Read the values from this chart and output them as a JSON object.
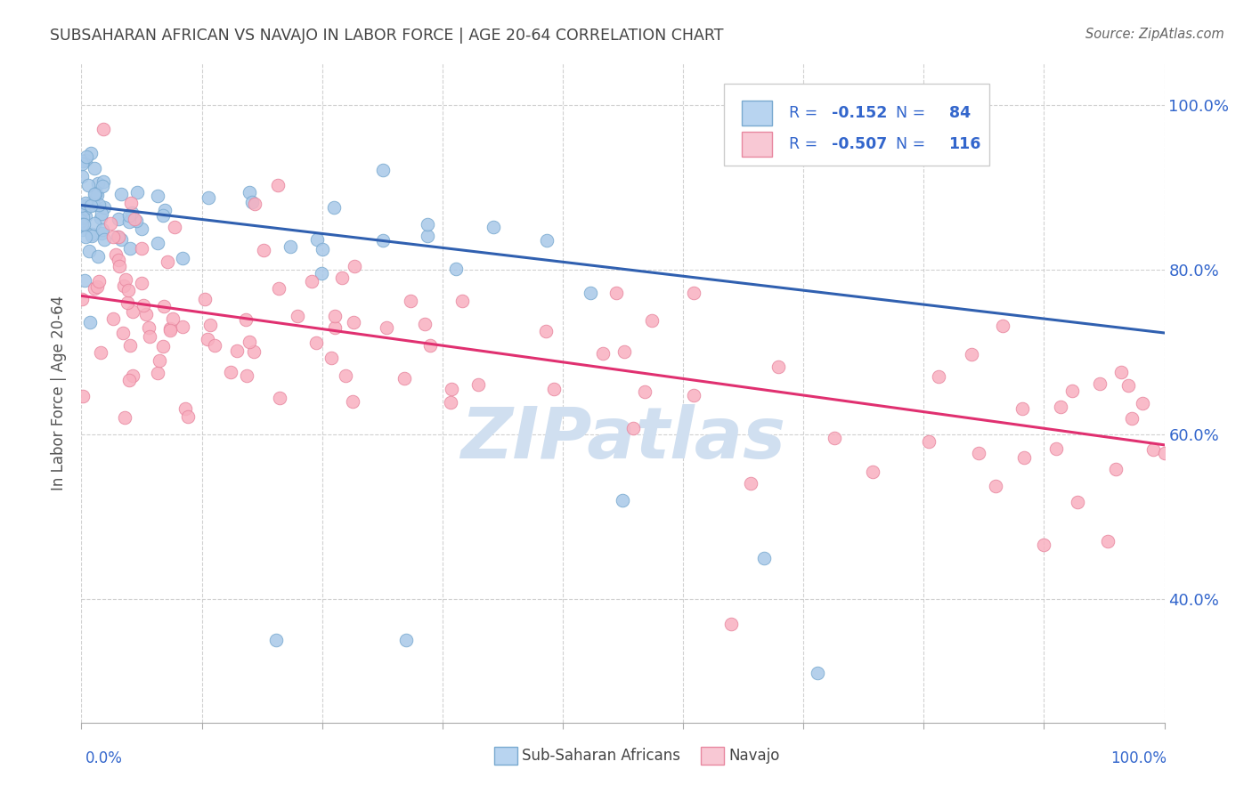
{
  "title": "SUBSAHARAN AFRICAN VS NAVAJO IN LABOR FORCE | AGE 20-64 CORRELATION CHART",
  "source": "Source: ZipAtlas.com",
  "ylabel": "In Labor Force | Age 20-64",
  "legend_label_blue": "Sub-Saharan Africans",
  "legend_label_pink": "Navajo",
  "R_blue": -0.152,
  "N_blue": 84,
  "R_pink": -0.507,
  "N_pink": 116,
  "color_blue": "#a8c8e8",
  "color_pink": "#f8b0c0",
  "edge_blue": "#7aaad0",
  "edge_pink": "#e888a0",
  "line_color_blue": "#3060b0",
  "line_color_pink": "#e03070",
  "axis_label_color": "#3366cc",
  "title_color": "#444444",
  "watermark": "ZIPatlas",
  "watermark_color": "#d0dff0",
  "bg_color": "#ffffff",
  "grid_color": "#cccccc",
  "ymin": 0.25,
  "ymax": 1.05,
  "xmin": 0.0,
  "xmax": 1.0,
  "blue_line_start": 0.878,
  "blue_line_end": 0.723,
  "pink_line_start": 0.768,
  "pink_line_end": 0.587,
  "yright_ticks": [
    0.4,
    0.6,
    0.8,
    1.0
  ],
  "yright_labels": [
    "40.0%",
    "60.0%",
    "80.0%",
    "100.0%"
  ]
}
